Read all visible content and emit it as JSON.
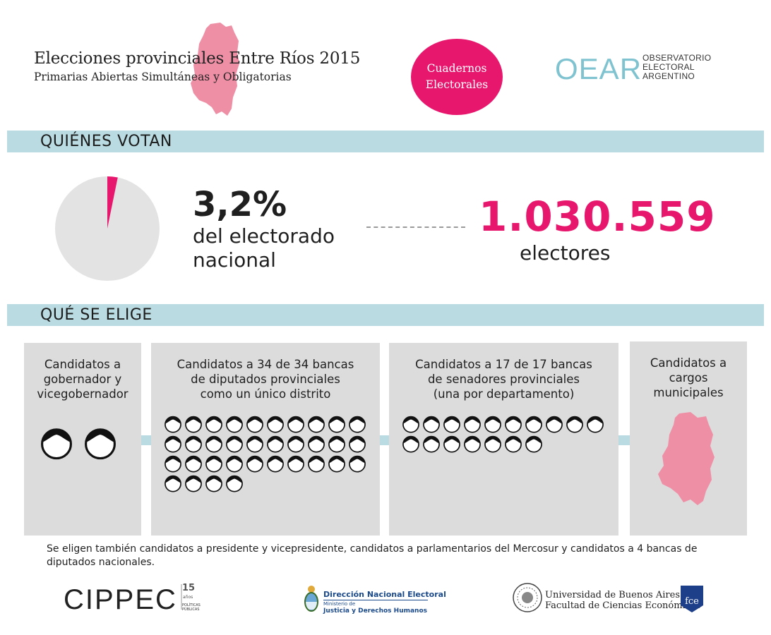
{
  "header": {
    "title": "Elecciones provinciales Entre Ríos 2015",
    "subtitle": "Primarias Abiertas Simultáneas y Obligatorias",
    "badge_line1": "Cuadernos",
    "badge_line2": "Electorales",
    "oear_line1": "OBSERVATORIO",
    "oear_line2": "ELECTORAL",
    "oear_line3": "ARGENTINO",
    "oear_logo_text": "OEAR"
  },
  "colors": {
    "accent": "#e8176e",
    "map_pink": "#ef8fa6",
    "bar_blue": "#b9dbe1",
    "card_gray": "#dcdcdc",
    "pie_gray": "#e3e3e3"
  },
  "quienes_votan": {
    "section_title": "QUIÉNES VOTAN",
    "percent_value": 3.2,
    "percent_text": "3,2%",
    "percent_label_line1": "del electorado",
    "percent_label_line2": "nacional",
    "electores_value": "1.030.559",
    "electores_label": "electores"
  },
  "que_se_elige": {
    "section_title": "QUÉ SE ELIGE",
    "cards": [
      {
        "lines": [
          "Candidatos a",
          "gobernador y",
          "vicegobernador"
        ],
        "count": 2,
        "icon": "person-icon"
      },
      {
        "lines": [
          "Candidatos a 34 de 34 bancas",
          "de diputados provinciales",
          "como un único distrito"
        ],
        "count": 34,
        "icon": "person-icon"
      },
      {
        "lines": [
          "Candidatos a 17 de 17 bancas",
          "de senadores provinciales",
          "(una por departamento)"
        ],
        "count": 17,
        "icon": "person-icon"
      },
      {
        "lines": [
          "Candidatos a",
          "cargos",
          "municipales"
        ],
        "icon": "province-map-icon"
      }
    ],
    "footnote": "Se eligen también  candidatos a presidente y vicepresidente, candidatos a parlamentarios del Mercosur y candidatos a 4 bancas de diputados nacionales."
  },
  "footer": {
    "cippec": "CIPPEC",
    "cippec_years": "15",
    "cippec_anos": "años",
    "cippec_pp": "POLÍTICAS PÚBLICAS",
    "dne_title": "Dirección Nacional Electoral",
    "dne_sub1": "Ministerio de",
    "dne_sub2": "Justicia y Derechos Humanos",
    "uba_line1": "Universidad de Buenos Aires",
    "uba_line2": "Facultad de Ciencias Económicas",
    "fce_text": "fce"
  }
}
